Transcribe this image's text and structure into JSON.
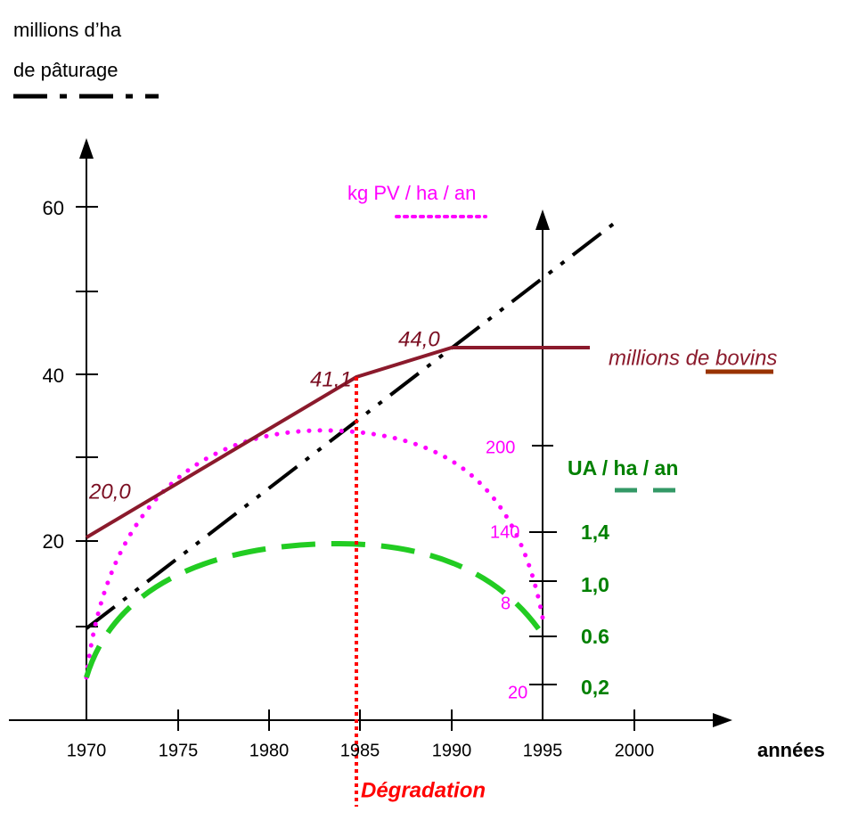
{
  "legend": {
    "area": "millions d’ha",
    "area2": "de pâturage",
    "productivity": "kg PV / ha / an",
    "ua": "UA / ha / an",
    "cattle": "millions de bovins"
  },
  "left_axis": [
    "60",
    "40",
    "20"
  ],
  "x_axis": {
    "ticks": [
      "1970",
      "1975",
      "1980",
      "1985",
      "1990",
      "1995",
      "2000"
    ],
    "label": "années"
  },
  "kg_axis": [
    "200",
    "140",
    "8",
    "20"
  ],
  "ua_axis": [
    "1,4",
    "1,0",
    "0.6",
    "0,2"
  ],
  "cattle_labels": [
    "20,0",
    "41,1",
    "44,0"
  ],
  "annotation": "Dégradation"
}
